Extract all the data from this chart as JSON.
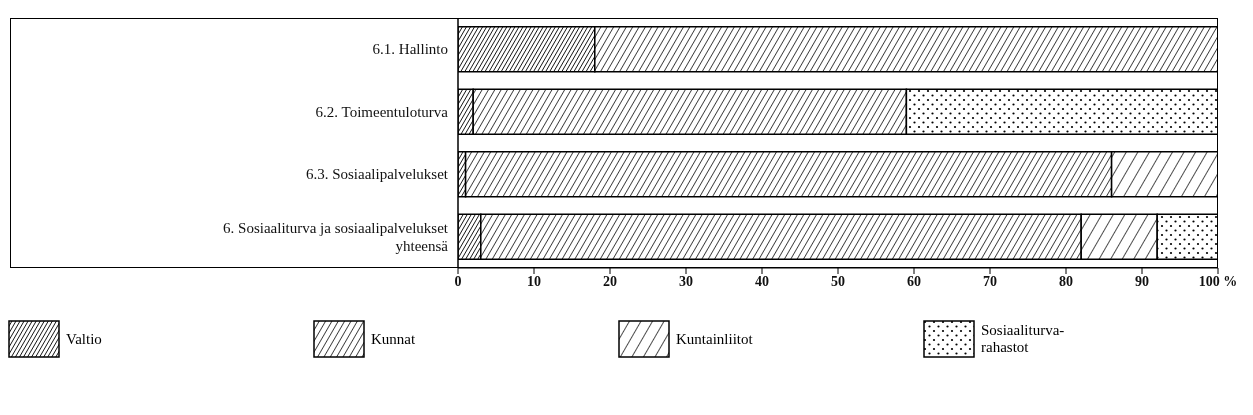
{
  "chart_data": {
    "type": "bar",
    "orientation": "horizontal",
    "stacked": true,
    "categories": [
      "6.1. Hallinto",
      "6.2. Toimeentuloturva",
      "6.3. Sosiaalipalvelukset",
      "6. Sosiaaliturva ja sosiaalipalvelukset yhteensä"
    ],
    "series": [
      {
        "name": "Valtio",
        "color": "#000000",
        "values": [
          18,
          2,
          1,
          3
        ]
      },
      {
        "name": "Kunnat",
        "color": "#000000",
        "values": [
          82,
          57,
          85,
          79
        ]
      },
      {
        "name": "Kuntainliitot",
        "color": "#000000",
        "values": [
          null,
          null,
          14,
          10
        ]
      },
      {
        "name": "Sosiaaliturva-rahastot",
        "color": "#000000",
        "values": [
          null,
          41,
          null,
          8
        ]
      }
    ],
    "xlim": [
      0,
      100
    ],
    "xticks": [
      0,
      10,
      20,
      30,
      40,
      50,
      60,
      70,
      80,
      90,
      {
        "value": 100,
        "label": "100 %"
      }
    ],
    "legend": "bottom"
  }
}
